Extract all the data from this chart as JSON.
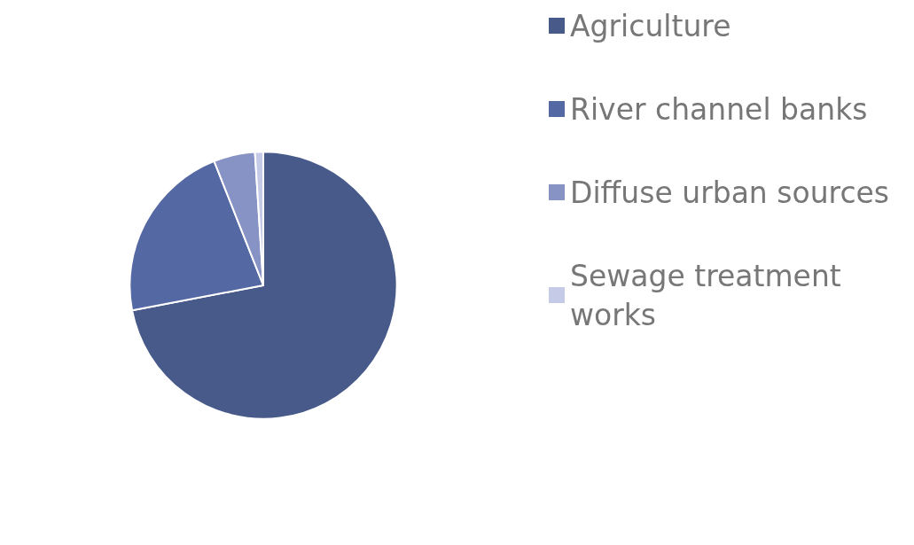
{
  "chart_data": {
    "type": "pie",
    "categories": [
      "Agriculture",
      "River channel banks",
      "Diffuse urban sources",
      "Sewage treatment works"
    ],
    "values": [
      72,
      22,
      5,
      1
    ],
    "colors": [
      "#475a8a",
      "#5468a3",
      "#8793c4",
      "#c5cbe6"
    ],
    "legend": "right"
  }
}
